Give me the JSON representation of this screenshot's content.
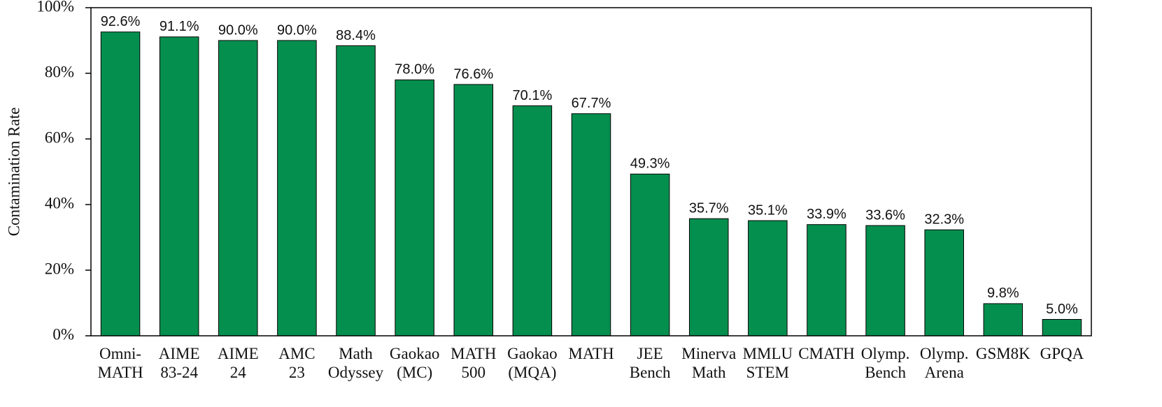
{
  "chart_data": {
    "type": "bar",
    "y_label": "Contamination Rate",
    "categories": [
      [
        "Omni-",
        "MATH"
      ],
      [
        "AIME",
        "83-24"
      ],
      [
        "AIME",
        "24"
      ],
      [
        "AMC",
        "23"
      ],
      [
        "Math",
        "Odyssey"
      ],
      [
        "Gaokao",
        "(MC)"
      ],
      [
        "MATH",
        "500"
      ],
      [
        "Gaokao",
        "(MQA)"
      ],
      [
        "MATH"
      ],
      [
        "JEE",
        "Bench"
      ],
      [
        "Minerva",
        "Math"
      ],
      [
        "MMLU",
        "STEM"
      ],
      [
        "CMATH"
      ],
      [
        "Olymp.",
        "Bench"
      ],
      [
        "Olymp.",
        "Arena"
      ],
      [
        "GSM8K"
      ],
      [
        "GPQA"
      ]
    ],
    "values": [
      92.6,
      91.1,
      90.0,
      90.0,
      88.4,
      78.0,
      76.6,
      70.1,
      67.7,
      49.3,
      35.7,
      35.1,
      33.9,
      33.6,
      32.3,
      9.8,
      5.0
    ],
    "value_labels": [
      "92.6%",
      "91.1%",
      "90.0%",
      "90.0%",
      "88.4%",
      "78.0%",
      "76.6%",
      "70.1%",
      "67.7%",
      "49.3%",
      "35.7%",
      "35.1%",
      "33.9%",
      "33.6%",
      "32.3%",
      "9.8%",
      "5.0%"
    ],
    "color": "#058f4f",
    "ylim": [
      0,
      100
    ],
    "yticks": [
      {
        "value": 0,
        "label": "0%"
      },
      {
        "value": 20,
        "label": "20%"
      },
      {
        "value": 40,
        "label": "40%"
      },
      {
        "value": 60,
        "label": "60%"
      },
      {
        "value": 80,
        "label": "80%"
      },
      {
        "value": 100,
        "label": "100%"
      }
    ],
    "grid": false
  }
}
